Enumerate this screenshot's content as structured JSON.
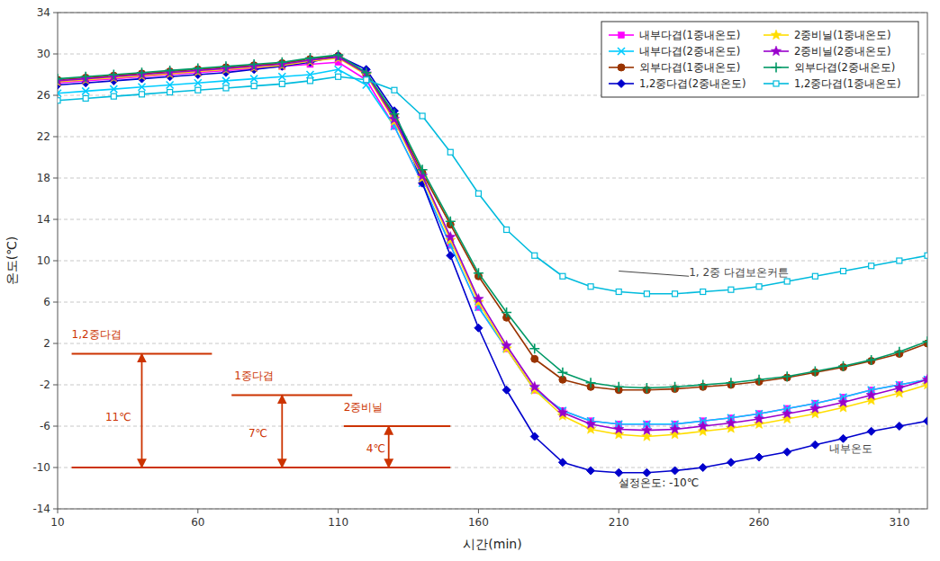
{
  "chart_data": {
    "type": "line",
    "xlabel": "시간(min)",
    "ylabel": "온도(℃)",
    "xlim": [
      10,
      320
    ],
    "ylim": [
      -14,
      34
    ],
    "xticks": [
      10,
      60,
      110,
      160,
      210,
      260,
      310
    ],
    "yticks": [
      -14,
      -10,
      -6,
      -2,
      2,
      6,
      10,
      14,
      18,
      22,
      26,
      30,
      34
    ],
    "grid": "y",
    "legend": "upper right",
    "x": [
      10,
      20,
      30,
      40,
      50,
      60,
      70,
      80,
      90,
      100,
      110,
      120,
      130,
      140,
      150,
      160,
      170,
      180,
      190,
      200,
      210,
      220,
      230,
      240,
      250,
      260,
      270,
      280,
      290,
      300,
      310,
      320
    ],
    "series": [
      {
        "name": "내부다겹(1중내온도)",
        "color": "#ff00ff",
        "marker": "square",
        "values": [
          27.2,
          27.4,
          27.6,
          27.8,
          28.0,
          28.2,
          28.4,
          28.6,
          28.8,
          29.0,
          29.2,
          27.5,
          23.0,
          17.5,
          11.5,
          5.5,
          1.5,
          -2.5,
          -4.5,
          -5.5,
          -5.8,
          -5.8,
          -5.8,
          -5.5,
          -5.2,
          -4.8,
          -4.3,
          -3.8,
          -3.2,
          -2.5,
          -2.0,
          -1.5
        ]
      },
      {
        "name": "내부다겹(2중내온도)",
        "color": "#00ccff",
        "marker": "x",
        "values": [
          26.2,
          26.4,
          26.6,
          26.8,
          27.0,
          27.2,
          27.4,
          27.6,
          27.8,
          28.0,
          28.5,
          27.0,
          23.0,
          17.5,
          11.5,
          5.5,
          1.5,
          -2.5,
          -4.5,
          -5.5,
          -5.8,
          -5.8,
          -5.8,
          -5.5,
          -5.2,
          -4.8,
          -4.3,
          -3.8,
          -3.2,
          -2.5,
          -2.0,
          -1.5
        ]
      },
      {
        "name": "외부다겹(1중내온도)",
        "color": "#993300",
        "marker": "circle",
        "values": [
          27.5,
          27.7,
          27.9,
          28.1,
          28.3,
          28.5,
          28.7,
          28.9,
          29.1,
          29.5,
          29.8,
          28.0,
          24.0,
          18.5,
          13.5,
          8.5,
          4.5,
          0.5,
          -1.5,
          -2.2,
          -2.5,
          -2.5,
          -2.4,
          -2.2,
          -2.0,
          -1.7,
          -1.3,
          -0.8,
          -0.3,
          0.3,
          1.0,
          2.0
        ]
      },
      {
        "name": "1,2중다겹(2중내온도)",
        "color": "#0000cc",
        "marker": "diamond",
        "values": [
          27.0,
          27.2,
          27.4,
          27.6,
          27.8,
          28.0,
          28.2,
          28.5,
          28.8,
          29.2,
          29.8,
          28.5,
          24.5,
          17.5,
          10.5,
          3.5,
          -2.5,
          -7.0,
          -9.5,
          -10.3,
          -10.5,
          -10.5,
          -10.3,
          -10.0,
          -9.5,
          -9.0,
          -8.5,
          -7.8,
          -7.2,
          -6.5,
          -6.0,
          -5.5
        ]
      },
      {
        "name": "2중비닐(1중내온도)",
        "color": "#ffdd00",
        "marker": "star",
        "values": [
          27.3,
          27.5,
          27.7,
          27.9,
          28.1,
          28.3,
          28.5,
          28.7,
          28.9,
          29.3,
          29.6,
          28.0,
          23.5,
          18.0,
          12.0,
          6.0,
          1.5,
          -2.5,
          -5.0,
          -6.3,
          -6.8,
          -7.0,
          -6.8,
          -6.5,
          -6.2,
          -5.8,
          -5.3,
          -4.8,
          -4.2,
          -3.5,
          -2.8,
          -2.0
        ]
      },
      {
        "name": "2중비닐(2중내온도)",
        "color": "#9900cc",
        "marker": "star",
        "values": [
          27.4,
          27.6,
          27.8,
          28.0,
          28.2,
          28.4,
          28.6,
          28.8,
          29.0,
          29.4,
          29.7,
          28.1,
          23.7,
          18.2,
          12.3,
          6.3,
          1.8,
          -2.2,
          -4.7,
          -5.8,
          -6.3,
          -6.4,
          -6.3,
          -6.0,
          -5.7,
          -5.3,
          -4.8,
          -4.3,
          -3.7,
          -3.0,
          -2.3,
          -1.5
        ]
      },
      {
        "name": "외부다겹(2중내온도)",
        "color": "#009966",
        "marker": "plus",
        "values": [
          27.6,
          27.8,
          28.0,
          28.2,
          28.4,
          28.6,
          28.8,
          29.0,
          29.2,
          29.6,
          29.9,
          28.2,
          24.2,
          18.8,
          13.8,
          8.8,
          5.0,
          1.5,
          -0.8,
          -1.8,
          -2.2,
          -2.3,
          -2.2,
          -2.0,
          -1.8,
          -1.5,
          -1.2,
          -0.7,
          -0.2,
          0.4,
          1.2,
          2.2
        ]
      },
      {
        "name": "1,2중다겹(1중내온도)",
        "color": "#00bbdd",
        "marker": "square-open",
        "values": [
          25.5,
          25.7,
          25.9,
          26.1,
          26.3,
          26.5,
          26.7,
          26.9,
          27.1,
          27.4,
          27.8,
          27.5,
          26.5,
          24.0,
          20.5,
          16.5,
          13.0,
          10.5,
          8.5,
          7.5,
          7.0,
          6.8,
          6.8,
          7.0,
          7.2,
          7.5,
          8.0,
          8.5,
          9.0,
          9.5,
          10.0,
          10.5
        ]
      }
    ],
    "reference_line": {
      "y": -10,
      "x": [
        15,
        150
      ],
      "color": "#cc3300"
    },
    "brackets": [
      {
        "top": 1,
        "bottom": -10,
        "x": [
          15,
          65
        ],
        "arrow_x": 40,
        "color": "#cc3300"
      },
      {
        "top": -3,
        "bottom": -10,
        "x": [
          72,
          115
        ],
        "arrow_x": 90,
        "color": "#cc3300"
      },
      {
        "top": -6,
        "bottom": -10,
        "x": [
          112,
          150
        ],
        "arrow_x": 128,
        "color": "#cc3300"
      }
    ],
    "annotations": [
      {
        "text": "1, 2중 다겹보온커튼",
        "x": 235,
        "y": 8.5,
        "point": [
          210,
          9.0
        ],
        "color": "#444444"
      },
      {
        "text": "내부온도",
        "x": 285,
        "y": -8.5,
        "color": "#444444"
      },
      {
        "text": "설정온도: -10℃",
        "x": 210,
        "y": -11.8
      },
      {
        "text": "1,2중다겹",
        "x": 15,
        "y": 2.5,
        "color": "#cc3300"
      },
      {
        "text": "11℃",
        "x": 27,
        "y": -5.5,
        "color": "#cc3300"
      },
      {
        "text": "1중다겹",
        "x": 73,
        "y": -1.5,
        "color": "#cc3300"
      },
      {
        "text": "7℃",
        "x": 78,
        "y": -7.0,
        "color": "#cc3300"
      },
      {
        "text": "2중비닐",
        "x": 112,
        "y": -4.5,
        "color": "#cc3300"
      },
      {
        "text": "4℃",
        "x": 120,
        "y": -8.5,
        "color": "#cc3300"
      }
    ]
  }
}
